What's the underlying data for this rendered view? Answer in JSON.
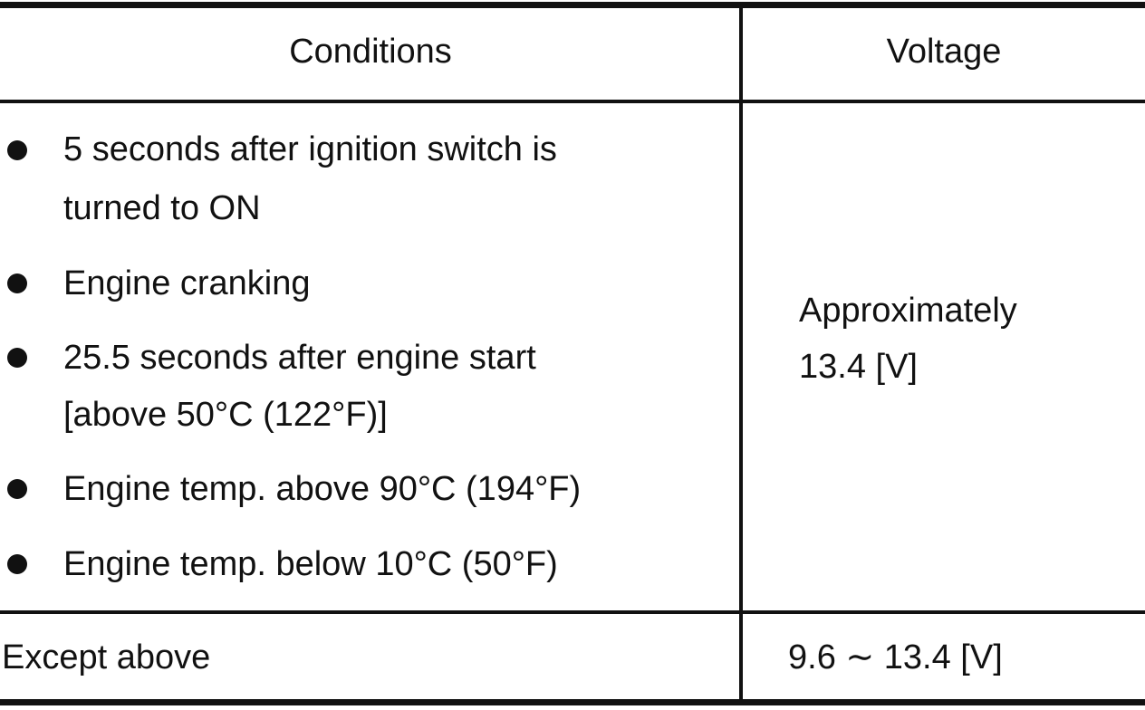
{
  "table": {
    "header": [
      "Conditions",
      "Voltage"
    ],
    "rows": [
      {
        "conditions": [
          [
            "5 seconds after ignition switch is",
            "turned to ON"
          ],
          [
            "Engine cranking"
          ],
          [
            "25.5 seconds after engine start",
            "[above 50°C (122°F)]"
          ],
          [
            "Engine temp. above 90°C (194°F)"
          ],
          [
            "Engine temp. below 10°C (50°F)"
          ]
        ],
        "voltage": [
          "Approximately",
          "13.4 [V]"
        ]
      },
      {
        "conditions": [
          [
            "Except above"
          ]
        ],
        "voltage": [
          "9.6 ∼ 13.4 [V]"
        ]
      }
    ]
  }
}
